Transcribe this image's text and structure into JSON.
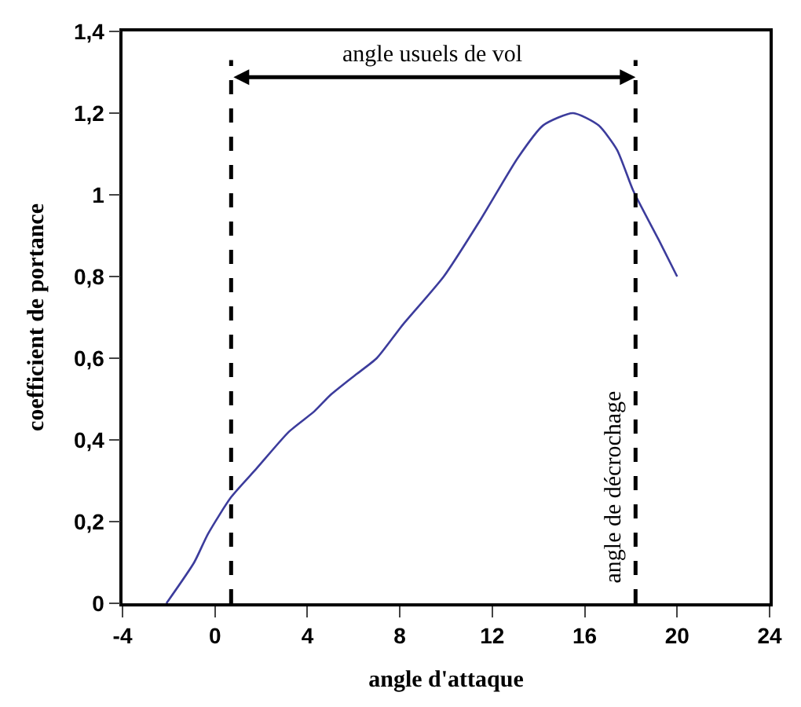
{
  "chart_data": {
    "type": "line",
    "xlabel": "angle d'attaque",
    "ylabel": "coefficient de portance",
    "x": [
      -2.1,
      -0.9,
      -0.3,
      0.7,
      1.8,
      3.2,
      4.3,
      5,
      6.1,
      7,
      8.1,
      9.9,
      11.5,
      13.1,
      14.2,
      15.5,
      16.6,
      17.4,
      18.1,
      19.2,
      20
    ],
    "series": [
      {
        "color": "#3c3c9c",
        "values": [
          0,
          0.1,
          0.17,
          0.26,
          0.33,
          0.42,
          0.47,
          0.51,
          0.56,
          0.6,
          0.68,
          0.8,
          0.94,
          1.09,
          1.17,
          1.2,
          1.17,
          1.11,
          1.01,
          0.89,
          0.8
        ]
      }
    ],
    "xlim": [
      -4,
      24
    ],
    "xticks": [
      -4,
      0,
      4,
      8,
      12,
      16,
      20,
      24
    ],
    "ylim": [
      0,
      1.4
    ],
    "yticks": [
      0,
      {
        "value": 0.2,
        "label": "0,2"
      },
      {
        "value": 0.4,
        "label": "0,4"
      },
      {
        "value": 0.6,
        "label": "0,6"
      },
      {
        "value": 0.8,
        "label": "0,8"
      },
      1,
      {
        "value": 1.2,
        "label": "1,2"
      },
      {
        "value": 1.4,
        "label": "1,4"
      }
    ],
    "marker": "none",
    "line_style": "solid",
    "ref_lines": [
      {
        "axis": "x",
        "value": 0.7,
        "label": null,
        "color": "#000000",
        "line_style": "dashed"
      },
      {
        "axis": "x",
        "value": 18.2,
        "label": "angle de décrochage",
        "color": "#000000",
        "line_style": "dashed"
      }
    ],
    "annotations": [
      "angle usuels de vol"
    ]
  }
}
